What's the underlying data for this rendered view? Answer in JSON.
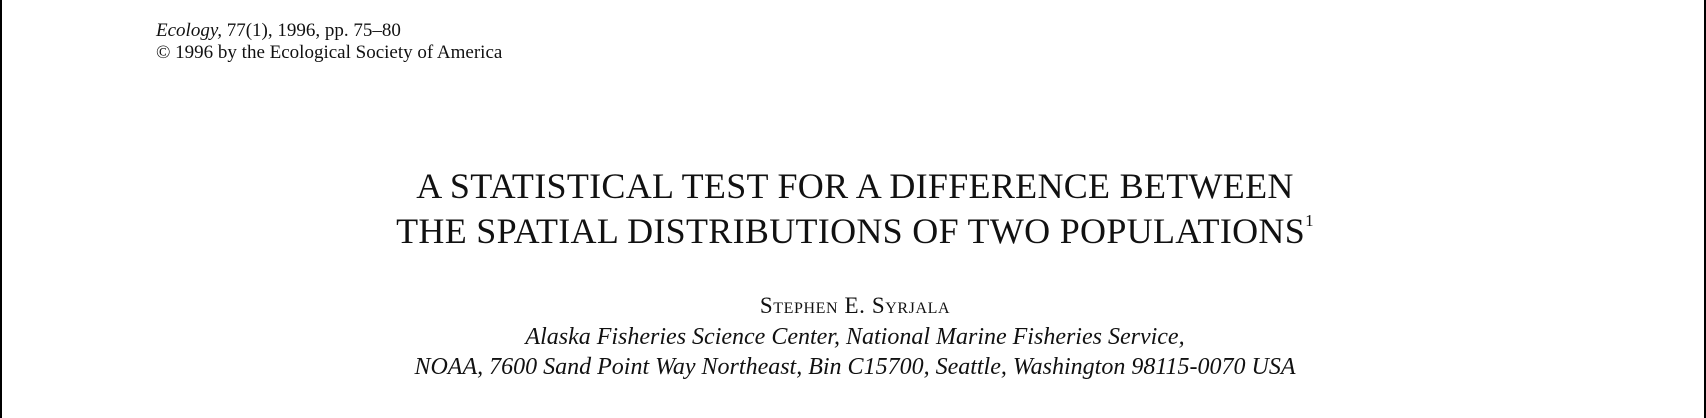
{
  "masthead": {
    "journal": "Ecology,",
    "citation": " 77(1), 1996, pp. 75–80",
    "copyright": "© 1996 by the Ecological Society of America"
  },
  "article": {
    "title_line_1": "A STATISTICAL TEST FOR A DIFFERENCE BETWEEN",
    "title_line_2": "THE SPATIAL DISTRIBUTIONS OF TWO POPULATIONS",
    "title_footnote_mark": "1",
    "author": "Stephen E. Syrjala",
    "affiliation_line_1": "Alaska Fisheries Science Center, National Marine Fisheries Service,",
    "affiliation_line_2": "NOAA, 7600 Sand Point Way Northeast, Bin C15700, Seattle, Washington 98115-0070 USA"
  }
}
